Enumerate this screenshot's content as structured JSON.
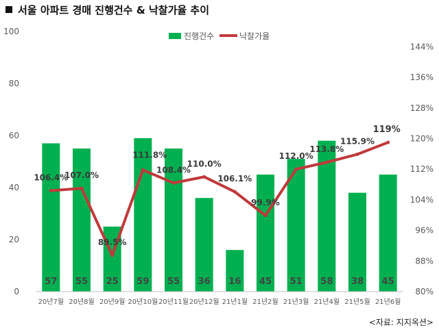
{
  "page": {
    "title": "서울 아파트 경매 진행건수 & 낙찰가율 추이",
    "source": "<자료: 지지옥션>"
  },
  "chart_data": {
    "type": "bar",
    "categories": [
      "20년7월",
      "20년8월",
      "20년9월",
      "20년10월",
      "20년11월",
      "20년12월",
      "21년1월",
      "21년2월",
      "21년3월",
      "21년4월",
      "21년5월",
      "21년6월"
    ],
    "series": [
      {
        "name": "진행건수",
        "type": "bar",
        "axis": "left",
        "color": "#00b050",
        "values": [
          57,
          55,
          25,
          59,
          55,
          36,
          16,
          45,
          51,
          58,
          38,
          45
        ],
        "labels": [
          "57",
          "55",
          "25",
          "59",
          "55",
          "36",
          "16",
          "45",
          "51",
          "58",
          "38",
          "45"
        ]
      },
      {
        "name": "낙찰가율",
        "type": "line",
        "axis": "right",
        "color": "#c0393b",
        "values": [
          106.4,
          107.0,
          89.5,
          111.8,
          108.4,
          110.0,
          106.1,
          99.9,
          112.0,
          113.8,
          115.9,
          119.0
        ],
        "labels": [
          "106.4%",
          "107.0%",
          "89.5%",
          "111.8%",
          "108.4%",
          "110.0%",
          "106.1%",
          "99.9%",
          "112.0%",
          "113.8%",
          "115.9%",
          "119%"
        ]
      }
    ],
    "ylim_left": [
      0,
      100
    ],
    "yticks_left": [
      "0",
      "20",
      "40",
      "60",
      "80",
      "100"
    ],
    "ylim_right": [
      80,
      148
    ],
    "yticks_right": [
      "80%",
      "88%",
      "96%",
      "104%",
      "112%",
      "120%",
      "128%",
      "136%",
      "144%"
    ],
    "legend": "top-center",
    "grid": false,
    "xlabel": "",
    "ylabel": ""
  }
}
